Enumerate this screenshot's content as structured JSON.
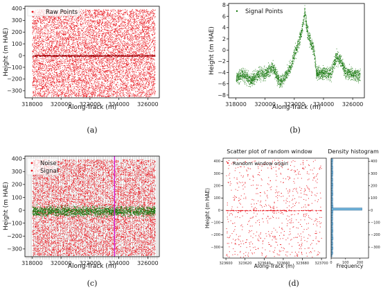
{
  "chart_data": [
    {
      "id": "a",
      "type": "scatter",
      "caption": "(a)",
      "xlabel": "Along-Track (m)",
      "ylabel": "Height (m HAE)",
      "xlim": [
        317500,
        326800
      ],
      "ylim": [
        -360,
        420
      ],
      "xticks": [
        318000,
        320000,
        322000,
        324000,
        326000
      ],
      "yticks": [
        -300,
        -200,
        -100,
        0,
        100,
        200,
        300,
        400
      ],
      "grid": false,
      "legend_position": "top-left",
      "colors": {
        "raw": "#e8141c"
      },
      "series": [
        {
          "name": "Raw Points",
          "role": "raw",
          "x_range": [
            318000,
            326500
          ],
          "y_range": [
            -350,
            395
          ],
          "background_band_y": 0
        }
      ]
    },
    {
      "id": "b",
      "type": "scatter",
      "caption": "(b)",
      "xlabel": "Along-Track (m)",
      "ylabel": "Height (m HAE)",
      "xlim": [
        317500,
        326800
      ],
      "ylim": [
        -8.5,
        8.3
      ],
      "xticks": [
        318000,
        320000,
        322000,
        324000,
        326000
      ],
      "yticks": [
        -8,
        -6,
        -4,
        -2,
        0,
        2,
        4,
        6,
        8
      ],
      "grid": false,
      "legend_position": "top-left",
      "colors": {
        "signal": "#1a7a12"
      },
      "series": [
        {
          "name": "Signal Points",
          "role": "signal",
          "profile": {
            "x": [
              318000,
              318500,
              319000,
              319500,
              320000,
              320500,
              321000,
              321500,
              321800,
              322000,
              322300,
              322500,
              322700,
              322900,
              323100,
              323300,
              323500,
              324000,
              324500,
              324900,
              325200,
              325500,
              326000,
              326500
            ],
            "y": [
              -5.0,
              -4.2,
              -5.5,
              -4.3,
              -4.2,
              -3.0,
              -5.8,
              -4.1,
              -2.5,
              -0.5,
              1.5,
              3.5,
              6.8,
              3.0,
              1.5,
              0.5,
              -4.0,
              -4.0,
              -4.0,
              -1.0,
              -2.0,
              -4.0,
              -4.2,
              -4.4
            ]
          },
          "spread": 0.9
        }
      ]
    },
    {
      "id": "c",
      "type": "scatter",
      "caption": "(c)",
      "xlabel": "Along-Track (m)",
      "ylabel": "Height (m HAE)",
      "xlim": [
        317500,
        326800
      ],
      "ylim": [
        -360,
        420
      ],
      "xticks": [
        318000,
        320000,
        322000,
        324000,
        326000
      ],
      "yticks": [
        -300,
        -200,
        -100,
        0,
        100,
        200,
        300,
        400
      ],
      "grid": false,
      "legend_position": "top-left",
      "colors": {
        "noise": "#e8141c",
        "signal": "#1a7a12",
        "window_marker": "#d020d0",
        "bin_lines": "#8c8c8c"
      },
      "vertical_marker_x": 323700,
      "series": [
        {
          "name": "Noise",
          "role": "noise",
          "x_range": [
            318000,
            326500
          ],
          "y_range": [
            -350,
            395
          ]
        },
        {
          "name": "Signal",
          "role": "signal",
          "x_range": [
            318000,
            326500
          ],
          "y_center": -5,
          "y_spread": 55
        }
      ]
    },
    {
      "id": "d",
      "type": "scatter",
      "caption": "(d)",
      "title": "Scatter plot of random window",
      "xlabel": "Along-Track (m)",
      "ylabel": "Height (m HAE)",
      "xlim": [
        323597,
        323705
      ],
      "ylim": [
        -390,
        425
      ],
      "xticks": [
        323600,
        323620,
        323640,
        323660,
        323680,
        323700
      ],
      "yticks": [
        -300,
        -200,
        -100,
        0,
        100,
        200,
        300,
        400
      ],
      "grid": false,
      "legend_position": "top-left",
      "colors": {
        "points": "#e8141c",
        "hist_fill": "#6aaed6",
        "hist_edge": "#1f4e79"
      },
      "series": [
        {
          "name": "Random window origin",
          "role": "points",
          "count": 750,
          "line_y": 0
        }
      ],
      "histogram": {
        "title": "Density histogram",
        "xlabel": "Frequency",
        "xlim": [
          0,
          260
        ],
        "xticks": [
          0,
          100,
          200
        ],
        "yticks_right": [
          -300,
          -200,
          -100,
          0,
          100,
          200,
          300,
          400
        ],
        "bins": [
          -380,
          -360,
          -340,
          -320,
          -300,
          -280,
          -260,
          -240,
          -220,
          -200,
          -180,
          -160,
          -140,
          -120,
          -100,
          -80,
          -60,
          -40,
          -20,
          0,
          20,
          40,
          60,
          80,
          100,
          120,
          140,
          160,
          180,
          200,
          220,
          240,
          260,
          280,
          300,
          320,
          340,
          360,
          380,
          400,
          420
        ],
        "counts": [
          7,
          12,
          10,
          13,
          11,
          12,
          10,
          14,
          12,
          11,
          13,
          12,
          11,
          13,
          10,
          12,
          11,
          12,
          13,
          215,
          14,
          12,
          11,
          12,
          10,
          13,
          12,
          11,
          12,
          13,
          11,
          12,
          10,
          12,
          13,
          11,
          12,
          10,
          11,
          12
        ]
      }
    }
  ]
}
